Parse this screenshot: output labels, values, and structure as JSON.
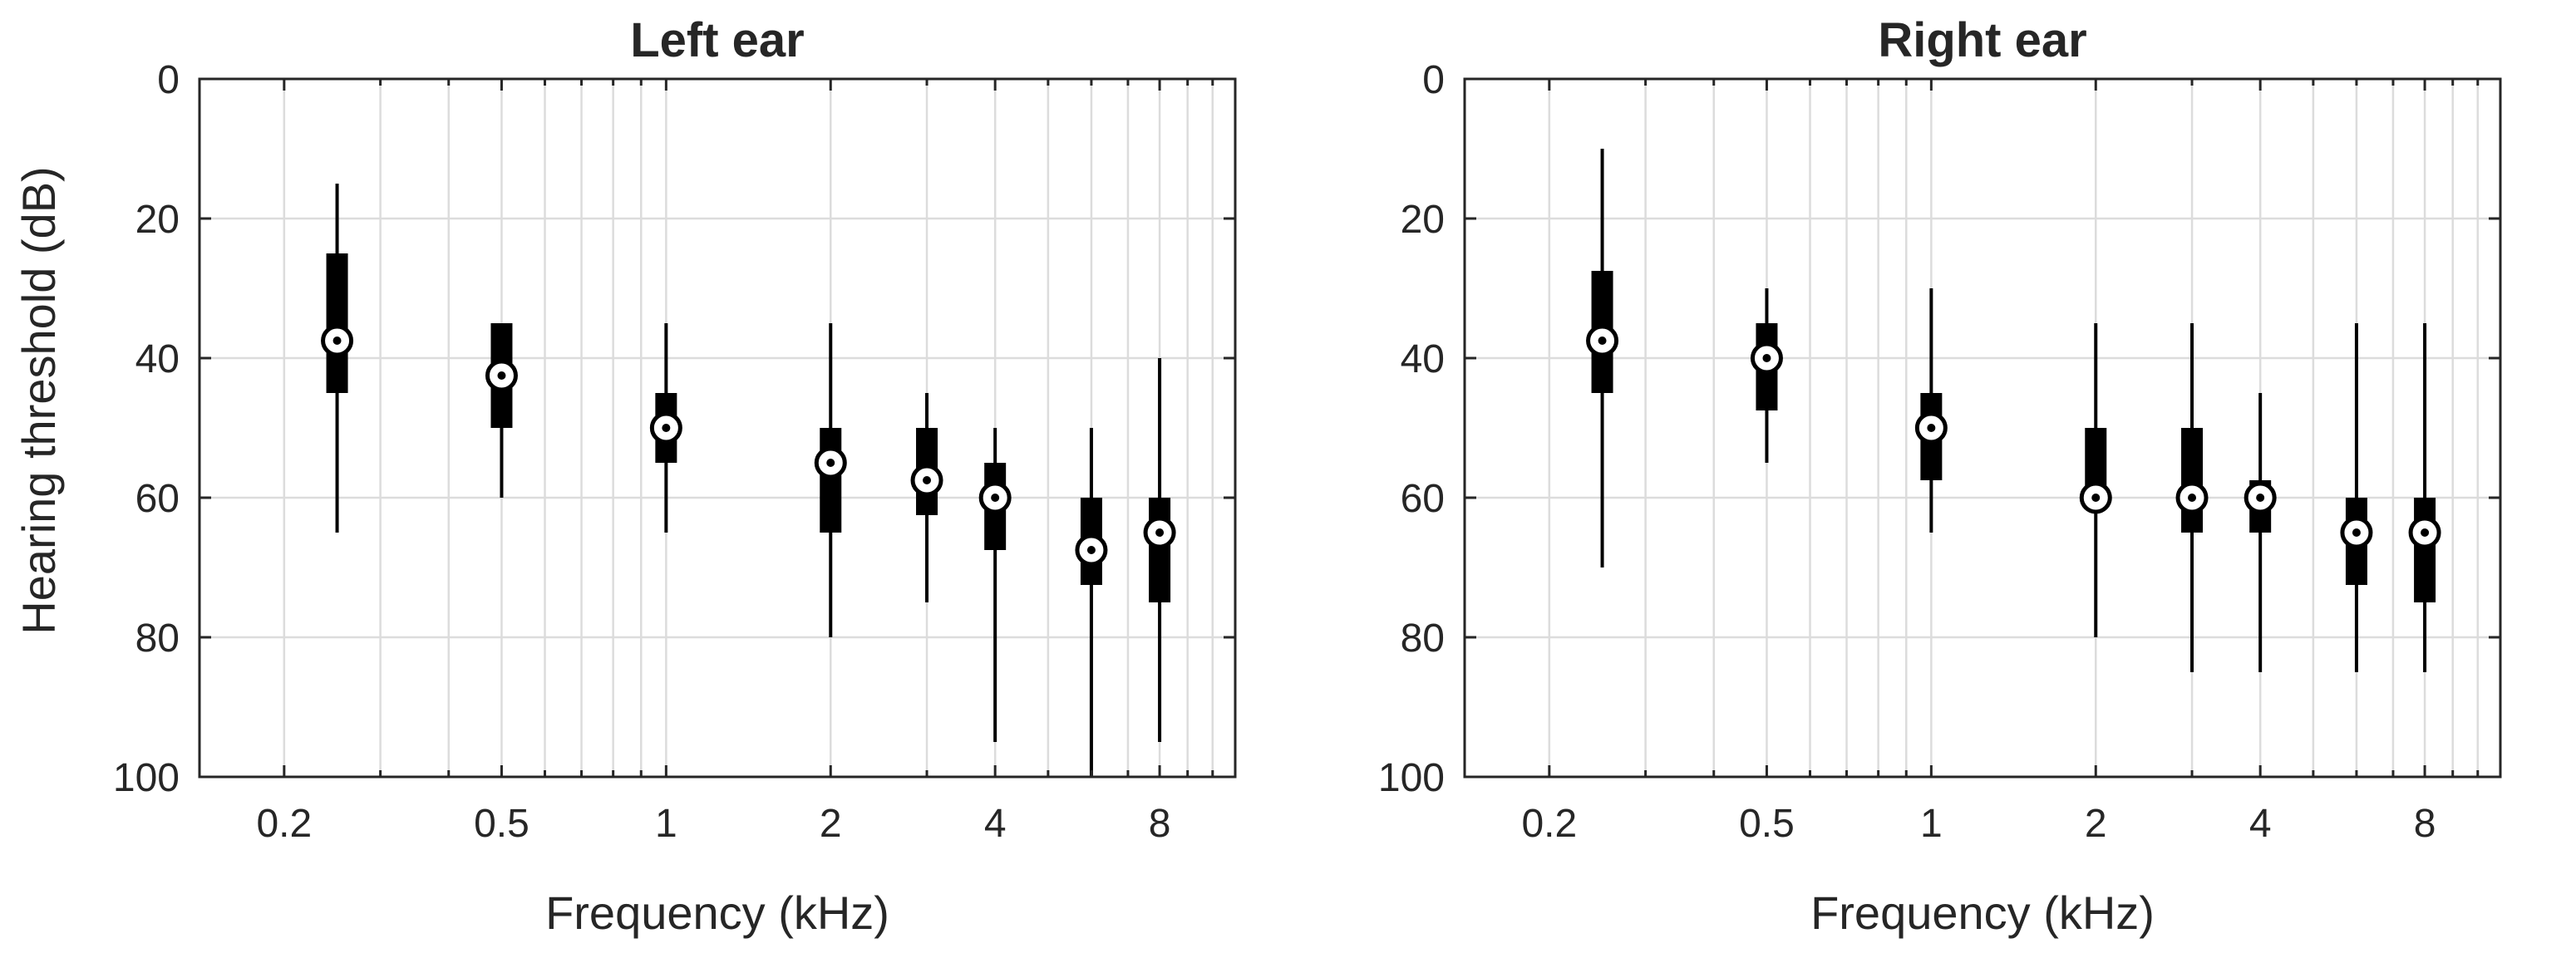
{
  "chart_data": [
    {
      "type": "boxplot",
      "title": "Left ear",
      "xlabel": "Frequency (kHz)",
      "ylabel": "Hearing threshold (dB)",
      "x_scale": "log",
      "x_range": [
        0.14,
        11
      ],
      "x_ticks": [
        0.2,
        0.5,
        1,
        2,
        4,
        8
      ],
      "x_tick_labels": [
        "0.2",
        "0.5",
        "1",
        "2",
        "4",
        "8"
      ],
      "y_reversed": true,
      "y_range": [
        0,
        100
      ],
      "y_ticks": [
        0,
        20,
        40,
        60,
        80,
        100
      ],
      "y_tick_labels": [
        "0",
        "20",
        "40",
        "60",
        "80",
        "100"
      ],
      "grid": true,
      "legend": "none",
      "data": [
        {
          "freq_khz": 0.25,
          "whisker_low": 15,
          "q1": 25,
          "median": 37.5,
          "q3": 45,
          "whisker_high": 65
        },
        {
          "freq_khz": 0.5,
          "whisker_low": 35,
          "q1": 35,
          "median": 42.5,
          "q3": 50,
          "whisker_high": 60
        },
        {
          "freq_khz": 1,
          "whisker_low": 35,
          "q1": 45,
          "median": 50,
          "q3": 55,
          "whisker_high": 65
        },
        {
          "freq_khz": 2,
          "whisker_low": 35,
          "q1": 50,
          "median": 55,
          "q3": 65,
          "whisker_high": 80
        },
        {
          "freq_khz": 3,
          "whisker_low": 45,
          "q1": 50,
          "median": 57.5,
          "q3": 62.5,
          "whisker_high": 75
        },
        {
          "freq_khz": 4,
          "whisker_low": 50,
          "q1": 55,
          "median": 60,
          "q3": 67.5,
          "whisker_high": 95
        },
        {
          "freq_khz": 6,
          "whisker_low": 50,
          "q1": 60,
          "median": 67.5,
          "q3": 72.5,
          "whisker_high": 100
        },
        {
          "freq_khz": 8,
          "whisker_low": 40,
          "q1": 60,
          "median": 65,
          "q3": 75,
          "whisker_high": 95
        }
      ]
    },
    {
      "type": "boxplot",
      "title": "Right ear",
      "xlabel": "Frequency (kHz)",
      "ylabel": "",
      "x_scale": "log",
      "x_range": [
        0.14,
        11
      ],
      "x_ticks": [
        0.2,
        0.5,
        1,
        2,
        4,
        8
      ],
      "x_tick_labels": [
        "0.2",
        "0.5",
        "1",
        "2",
        "4",
        "8"
      ],
      "y_reversed": true,
      "y_range": [
        0,
        100
      ],
      "y_ticks": [
        0,
        20,
        40,
        60,
        80,
        100
      ],
      "y_tick_labels": [
        "0",
        "20",
        "40",
        "60",
        "80",
        "100"
      ],
      "grid": true,
      "legend": "none",
      "data": [
        {
          "freq_khz": 0.25,
          "whisker_low": 10,
          "q1": 27.5,
          "median": 37.5,
          "q3": 45,
          "whisker_high": 70
        },
        {
          "freq_khz": 0.5,
          "whisker_low": 30,
          "q1": 35,
          "median": 40,
          "q3": 47.5,
          "whisker_high": 55
        },
        {
          "freq_khz": 1,
          "whisker_low": 30,
          "q1": 45,
          "median": 50,
          "q3": 57.5,
          "whisker_high": 65
        },
        {
          "freq_khz": 2,
          "whisker_low": 35,
          "q1": 50,
          "median": 60,
          "q3": 60,
          "whisker_high": 80
        },
        {
          "freq_khz": 3,
          "whisker_low": 35,
          "q1": 50,
          "median": 60,
          "q3": 65,
          "whisker_high": 85
        },
        {
          "freq_khz": 4,
          "whisker_low": 45,
          "q1": 57.5,
          "median": 60,
          "q3": 65,
          "whisker_high": 85
        },
        {
          "freq_khz": 6,
          "whisker_low": 35,
          "q1": 60,
          "median": 65,
          "q3": 72.5,
          "whisker_high": 85
        },
        {
          "freq_khz": 8,
          "whisker_low": 35,
          "q1": 60,
          "median": 65,
          "q3": 75,
          "whisker_high": 85
        }
      ]
    }
  ]
}
